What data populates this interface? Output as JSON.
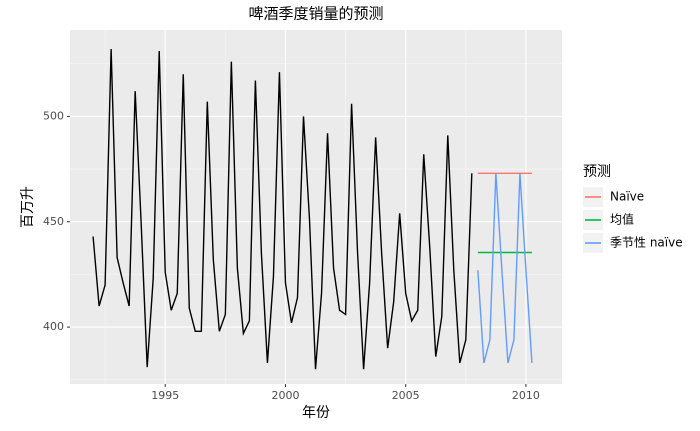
{
  "chart_data": {
    "type": "line",
    "title": "啤酒季度销量的预测",
    "x_label": "年份",
    "y_label": "百万升",
    "legend_title": "预测",
    "legend_position": "right",
    "grid": true,
    "color": "#000000",
    "x": [
      1992,
      1992.25,
      1992.5,
      1992.75,
      1993,
      1993.25,
      1993.5,
      1993.75,
      1994,
      1994.25,
      1994.5,
      1994.75,
      1995,
      1995.25,
      1995.5,
      1995.75,
      1996,
      1996.25,
      1996.5,
      1996.75,
      1997,
      1997.25,
      1997.5,
      1997.75,
      1998,
      1998.25,
      1998.5,
      1998.75,
      1999,
      1999.25,
      1999.5,
      1999.75,
      2000,
      2000.25,
      2000.5,
      2000.75,
      2001,
      2001.25,
      2001.5,
      2001.75,
      2002,
      2002.25,
      2002.5,
      2002.75,
      2003,
      2003.25,
      2003.5,
      2003.75,
      2004,
      2004.25,
      2004.5,
      2004.75,
      2005,
      2005.25,
      2005.5,
      2005.75,
      2006,
      2006.25,
      2006.5,
      2006.75,
      2007,
      2007.25,
      2007.5,
      2007.75
    ],
    "values": [
      443,
      410,
      420,
      532,
      433,
      421,
      410,
      512,
      449,
      381,
      423,
      531,
      426,
      408,
      416,
      520,
      409,
      398,
      398,
      507,
      432,
      398,
      406,
      526,
      428,
      397,
      403,
      517,
      435,
      383,
      424,
      521,
      421,
      402,
      414,
      500,
      451,
      380,
      416,
      492,
      428,
      408,
      406,
      506,
      435,
      380,
      421,
      490,
      435,
      390,
      412,
      454,
      416,
      403,
      408,
      482,
      438,
      386,
      405,
      491,
      427,
      383,
      394,
      473
    ],
    "series": [
      {
        "name": "Naïve",
        "color": "#F8766D",
        "x": [
          2008,
          2008.25,
          2008.5,
          2008.75,
          2009,
          2009.25,
          2009.5,
          2009.75,
          2010,
          2010.25
        ],
        "values": [
          473,
          473,
          473,
          473,
          473,
          473,
          473,
          473,
          473,
          473
        ]
      },
      {
        "name": "均值",
        "color": "#00BA38",
        "x": [
          2008,
          2008.25,
          2008.5,
          2008.75,
          2009,
          2009.25,
          2009.5,
          2009.75,
          2010,
          2010.25
        ],
        "values": [
          435.4,
          435.4,
          435.4,
          435.4,
          435.4,
          435.4,
          435.4,
          435.4,
          435.4,
          435.4
        ]
      },
      {
        "name": "季节性 naïve",
        "color": "#619CFF",
        "x": [
          2008,
          2008.25,
          2008.5,
          2008.75,
          2009,
          2009.25,
          2009.5,
          2009.75,
          2010,
          2010.25
        ],
        "values": [
          427,
          383,
          394,
          473,
          427,
          383,
          394,
          473,
          427,
          383
        ]
      }
    ],
    "xlim": [
      1991.04,
      2011.5
    ],
    "xticks": [
      1995,
      2000,
      2005,
      2010
    ],
    "ylim": [
      373,
      541
    ],
    "yticks": [
      400,
      450,
      500
    ]
  }
}
